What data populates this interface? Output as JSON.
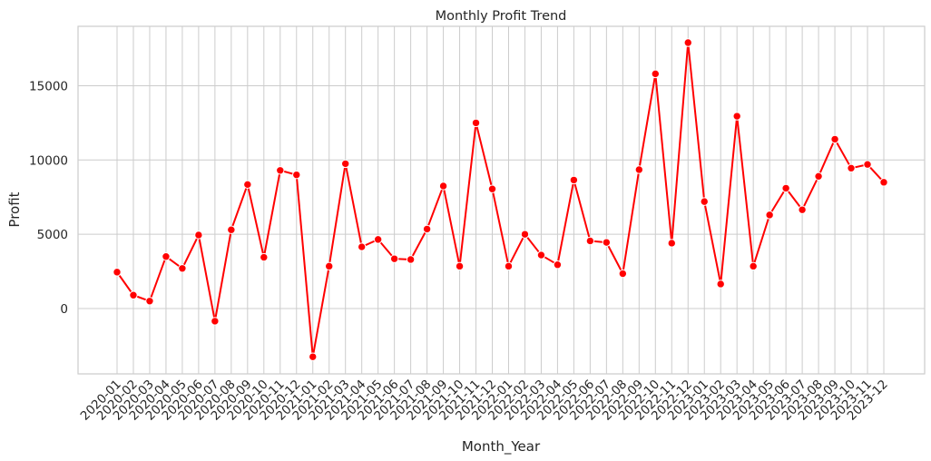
{
  "chart_data": {
    "type": "line",
    "title": "Monthly Profit Trend",
    "xlabel": "Month_Year",
    "ylabel": "Profit",
    "ylim": [
      -4400,
      19000
    ],
    "yticks": [
      0,
      5000,
      10000,
      15000
    ],
    "grid": true,
    "legend": "none",
    "line_color": "#ff0000",
    "grid_color": "#cccccc",
    "categories": [
      "2020-01",
      "2020-02",
      "2020-03",
      "2020-04",
      "2020-05",
      "2020-06",
      "2020-07",
      "2020-08",
      "2020-09",
      "2020-10",
      "2020-11",
      "2020-12",
      "2021-01",
      "2021-02",
      "2021-03",
      "2021-04",
      "2021-05",
      "2021-06",
      "2021-07",
      "2021-08",
      "2021-09",
      "2021-10",
      "2021-11",
      "2021-12",
      "2022-01",
      "2022-02",
      "2022-03",
      "2022-04",
      "2022-05",
      "2022-06",
      "2022-07",
      "2022-08",
      "2022-09",
      "2022-10",
      "2022-11",
      "2022-12",
      "2023-01",
      "2023-02",
      "2023-03",
      "2023-04",
      "2023-05",
      "2023-06",
      "2023-07",
      "2023-08",
      "2023-09",
      "2023-10",
      "2023-11",
      "2023-12"
    ],
    "series": [
      {
        "values": [
          2450,
          900,
          500,
          3500,
          2700,
          4950,
          -850,
          5300,
          8350,
          3450,
          9300,
          9000,
          -3250,
          2850,
          9750,
          4150,
          4650,
          3350,
          3300,
          5350,
          8250,
          2850,
          12500,
          8050,
          2850,
          5000,
          3600,
          2950,
          8650,
          4550,
          4450,
          2350,
          9350,
          15800,
          4400,
          17900,
          7200,
          1650,
          12950,
          2850,
          6300,
          8100,
          6650,
          8900,
          11400,
          9450,
          9700,
          8500
        ]
      }
    ]
  }
}
